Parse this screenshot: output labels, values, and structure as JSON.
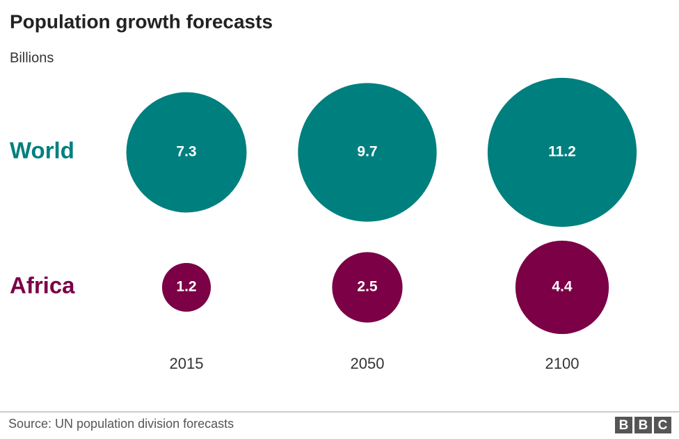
{
  "chart_data": {
    "type": "bubble",
    "title": "Population growth forecasts",
    "subtitle": "Billions",
    "categories": [
      "2015",
      "2050",
      "2100"
    ],
    "series": [
      {
        "name": "World",
        "color": "#007f7f",
        "values": [
          7.3,
          9.7,
          11.2
        ]
      },
      {
        "name": "Africa",
        "color": "#7b0046",
        "values": [
          1.2,
          2.5,
          4.4
        ]
      }
    ],
    "source": "Source: UN population division forecasts",
    "logo": [
      "B",
      "B",
      "C"
    ]
  }
}
